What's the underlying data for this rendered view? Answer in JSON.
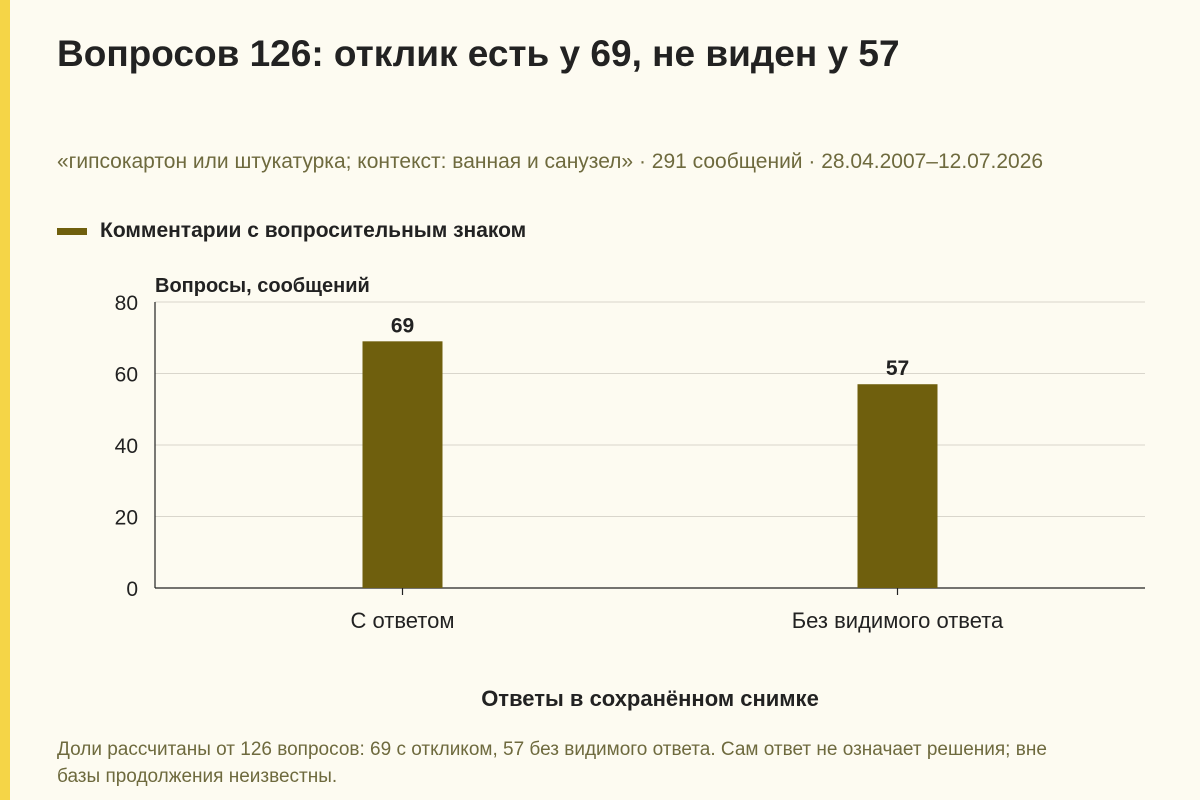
{
  "title": "Вопросов 126: отклик есть у 69, не виден у 57",
  "subtitle": "«гипсокартон или штукатурка; контекст: ванная и санузел» · 291 сообщений · 28.04.2007–12.07.2026",
  "legend_label": "Комментарии с вопросительным знаком",
  "footnote": "Доли рассчитаны от 126 вопросов: 69 с откликом, 57 без видимого ответа. Сам ответ не означает решения; вне базы продолжения неизвестны.",
  "colors": {
    "bar": "#6f5f0d",
    "accent": "#f5d547",
    "background": "#fdfbf1",
    "muted_text": "#6e6a3e"
  },
  "chart_data": {
    "type": "bar",
    "categories": [
      "С ответом",
      "Без видимого ответа"
    ],
    "series": [
      {
        "name": "Комментарии с вопросительным знаком",
        "values": [
          69,
          57
        ]
      }
    ],
    "data_labels": [
      "69",
      "57"
    ],
    "xlabel": "Ответы в сохранённом снимке",
    "ylabel": "Вопросы, сообщений",
    "ylim": [
      0,
      80
    ],
    "yticks": [
      0,
      20,
      40,
      60,
      80
    ],
    "grid": true,
    "legend_position": "top-left"
  }
}
